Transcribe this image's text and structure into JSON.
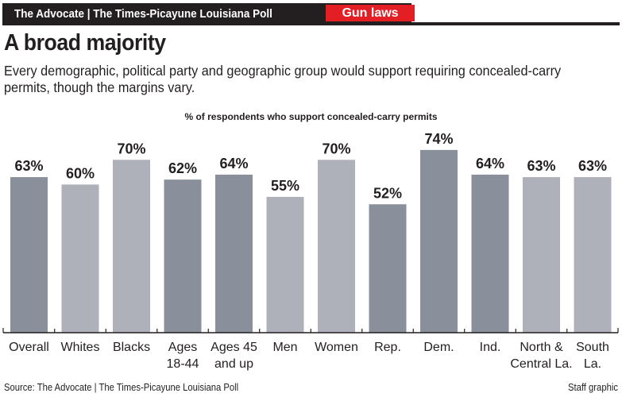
{
  "header": {
    "title": "The Advocate | The Times-Picayune Louisiana Poll",
    "topic": "Gun laws"
  },
  "headline": "A broad majority",
  "subhead": "Every demographic, political party and geographic group would support requiring concealed-carry permits, though the margins vary.",
  "footer": {
    "source": "Source: The Advocate | The Times-Picayune Louisiana Poll",
    "credit": "Staff graphic"
  },
  "colors": {
    "dark_bar": "#8a8f9c",
    "light_bar": "#aeb0ba",
    "topic_tag": "#e31e24"
  },
  "chart_data": {
    "type": "bar",
    "title": "% of respondents who support concealed-carry permits",
    "categories": [
      [
        "Overall"
      ],
      [
        "Whites"
      ],
      [
        "Blacks"
      ],
      [
        "Ages",
        "18-44"
      ],
      [
        "Ages 45",
        "and up"
      ],
      [
        "Men"
      ],
      [
        "Women"
      ],
      [
        "Rep."
      ],
      [
        "Dem."
      ],
      [
        "Ind."
      ],
      [
        "North &",
        "Central La."
      ],
      [
        "South",
        "La."
      ]
    ],
    "values": [
      63,
      60,
      70,
      62,
      64,
      55,
      70,
      52,
      74,
      64,
      63,
      63
    ],
    "labels": [
      "63%",
      "60%",
      "70%",
      "62%",
      "64%",
      "55%",
      "70%",
      "52%",
      "74%",
      "64%",
      "63%",
      "63%"
    ],
    "shade": [
      "dark",
      "light",
      "light",
      "dark",
      "dark",
      "light",
      "light",
      "dark",
      "dark",
      "dark",
      "light",
      "light"
    ],
    "ylim": [
      0,
      100
    ],
    "grid": false
  }
}
